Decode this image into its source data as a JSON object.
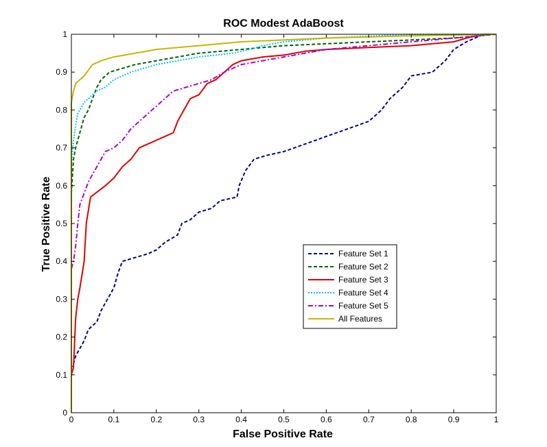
{
  "chart_data": {
    "type": "line",
    "title": "ROC Modest AdaBoost",
    "xlabel": "False Positive Rate",
    "ylabel": "True Positive Rate",
    "xlim": [
      0,
      1
    ],
    "ylim": [
      0,
      1
    ],
    "xticks": [
      "0",
      "0.1",
      "0.2",
      "0.3",
      "0.4",
      "0.5",
      "0.6",
      "0.7",
      "0.8",
      "0.9",
      "1"
    ],
    "yticks": [
      "0",
      "0.1",
      "0.2",
      "0.3",
      "0.4",
      "0.5",
      "0.6",
      "0.7",
      "0.8",
      "0.9",
      "1"
    ],
    "grid": false,
    "legend_position": "center-right",
    "series": [
      {
        "name": "Feature Set 1",
        "color": "#00008B",
        "style": "dashed",
        "points": [
          [
            0,
            0
          ],
          [
            0,
            0.12
          ],
          [
            0.005,
            0.13
          ],
          [
            0.01,
            0.15
          ],
          [
            0.02,
            0.17
          ],
          [
            0.03,
            0.19
          ],
          [
            0.04,
            0.22
          ],
          [
            0.05,
            0.23
          ],
          [
            0.06,
            0.24
          ],
          [
            0.07,
            0.27
          ],
          [
            0.08,
            0.29
          ],
          [
            0.09,
            0.31
          ],
          [
            0.1,
            0.33
          ],
          [
            0.11,
            0.37
          ],
          [
            0.12,
            0.4
          ],
          [
            0.15,
            0.41
          ],
          [
            0.18,
            0.42
          ],
          [
            0.2,
            0.43
          ],
          [
            0.22,
            0.45
          ],
          [
            0.25,
            0.47
          ],
          [
            0.26,
            0.5
          ],
          [
            0.28,
            0.51
          ],
          [
            0.3,
            0.53
          ],
          [
            0.33,
            0.54
          ],
          [
            0.35,
            0.56
          ],
          [
            0.39,
            0.57
          ],
          [
            0.395,
            0.6
          ],
          [
            0.41,
            0.64
          ],
          [
            0.43,
            0.67
          ],
          [
            0.46,
            0.68
          ],
          [
            0.5,
            0.69
          ],
          [
            0.55,
            0.71
          ],
          [
            0.6,
            0.73
          ],
          [
            0.65,
            0.75
          ],
          [
            0.7,
            0.77
          ],
          [
            0.73,
            0.8
          ],
          [
            0.75,
            0.83
          ],
          [
            0.78,
            0.86
          ],
          [
            0.8,
            0.89
          ],
          [
            0.85,
            0.9
          ],
          [
            0.88,
            0.93
          ],
          [
            0.9,
            0.96
          ],
          [
            0.93,
            0.98
          ],
          [
            0.97,
            1
          ],
          [
            1,
            1
          ]
        ]
      },
      {
        "name": "Feature Set 2",
        "color": "#006400",
        "style": "dashed",
        "points": [
          [
            0,
            0
          ],
          [
            0,
            0.58
          ],
          [
            0.005,
            0.67
          ],
          [
            0.01,
            0.7
          ],
          [
            0.02,
            0.74
          ],
          [
            0.03,
            0.78
          ],
          [
            0.04,
            0.8
          ],
          [
            0.05,
            0.83
          ],
          [
            0.06,
            0.86
          ],
          [
            0.07,
            0.88
          ],
          [
            0.09,
            0.9
          ],
          [
            0.12,
            0.91
          ],
          [
            0.15,
            0.92
          ],
          [
            0.2,
            0.93
          ],
          [
            0.25,
            0.94
          ],
          [
            0.3,
            0.95
          ],
          [
            0.4,
            0.96
          ],
          [
            0.5,
            0.97
          ],
          [
            0.6,
            0.975
          ],
          [
            0.7,
            0.98
          ],
          [
            0.8,
            0.985
          ],
          [
            0.9,
            0.99
          ],
          [
            0.95,
            0.995
          ],
          [
            1,
            1
          ]
        ]
      },
      {
        "name": "Feature Set 3",
        "color": "#DD0000",
        "style": "solid",
        "points": [
          [
            0,
            0
          ],
          [
            0,
            0.1
          ],
          [
            0.005,
            0.12
          ],
          [
            0.01,
            0.25
          ],
          [
            0.015,
            0.3
          ],
          [
            0.02,
            0.33
          ],
          [
            0.03,
            0.4
          ],
          [
            0.035,
            0.5
          ],
          [
            0.045,
            0.57
          ],
          [
            0.08,
            0.6
          ],
          [
            0.09,
            0.61
          ],
          [
            0.1,
            0.62
          ],
          [
            0.12,
            0.65
          ],
          [
            0.14,
            0.67
          ],
          [
            0.16,
            0.7
          ],
          [
            0.18,
            0.71
          ],
          [
            0.2,
            0.72
          ],
          [
            0.24,
            0.74
          ],
          [
            0.25,
            0.77
          ],
          [
            0.26,
            0.79
          ],
          [
            0.27,
            0.81
          ],
          [
            0.28,
            0.83
          ],
          [
            0.3,
            0.84
          ],
          [
            0.32,
            0.87
          ],
          [
            0.34,
            0.88
          ],
          [
            0.36,
            0.9
          ],
          [
            0.38,
            0.92
          ],
          [
            0.4,
            0.93
          ],
          [
            0.45,
            0.94
          ],
          [
            0.5,
            0.945
          ],
          [
            0.55,
            0.955
          ],
          [
            0.6,
            0.96
          ],
          [
            0.7,
            0.965
          ],
          [
            0.8,
            0.97
          ],
          [
            0.85,
            0.975
          ],
          [
            0.9,
            0.98
          ],
          [
            0.93,
            0.99
          ],
          [
            0.97,
            1
          ],
          [
            1,
            1
          ]
        ]
      },
      {
        "name": "Feature Set 4",
        "color": "#00BFFF",
        "style": "dotted",
        "points": [
          [
            0,
            0
          ],
          [
            0,
            0.66
          ],
          [
            0.005,
            0.72
          ],
          [
            0.01,
            0.76
          ],
          [
            0.015,
            0.79
          ],
          [
            0.02,
            0.8
          ],
          [
            0.03,
            0.82
          ],
          [
            0.05,
            0.84
          ],
          [
            0.06,
            0.85
          ],
          [
            0.08,
            0.86
          ],
          [
            0.09,
            0.87
          ],
          [
            0.1,
            0.88
          ],
          [
            0.12,
            0.89
          ],
          [
            0.14,
            0.9
          ],
          [
            0.17,
            0.91
          ],
          [
            0.2,
            0.92
          ],
          [
            0.25,
            0.93
          ],
          [
            0.3,
            0.94
          ],
          [
            0.38,
            0.95
          ],
          [
            0.42,
            0.96
          ],
          [
            0.45,
            0.97
          ],
          [
            0.5,
            0.98
          ],
          [
            0.6,
            0.99
          ],
          [
            0.7,
            0.995
          ],
          [
            0.8,
            1
          ],
          [
            1,
            1
          ]
        ]
      },
      {
        "name": "Feature Set 5",
        "color": "#AA00CC",
        "style": "dashdot",
        "points": [
          [
            0,
            0
          ],
          [
            0,
            0.38
          ],
          [
            0.005,
            0.4
          ],
          [
            0.01,
            0.44
          ],
          [
            0.015,
            0.5
          ],
          [
            0.02,
            0.55
          ],
          [
            0.03,
            0.58
          ],
          [
            0.04,
            0.61
          ],
          [
            0.05,
            0.63
          ],
          [
            0.06,
            0.65
          ],
          [
            0.07,
            0.67
          ],
          [
            0.08,
            0.69
          ],
          [
            0.1,
            0.7
          ],
          [
            0.12,
            0.72
          ],
          [
            0.14,
            0.75
          ],
          [
            0.16,
            0.77
          ],
          [
            0.18,
            0.79
          ],
          [
            0.2,
            0.81
          ],
          [
            0.22,
            0.83
          ],
          [
            0.24,
            0.85
          ],
          [
            0.27,
            0.86
          ],
          [
            0.3,
            0.87
          ],
          [
            0.33,
            0.88
          ],
          [
            0.36,
            0.9
          ],
          [
            0.4,
            0.92
          ],
          [
            0.45,
            0.93
          ],
          [
            0.5,
            0.94
          ],
          [
            0.55,
            0.95
          ],
          [
            0.6,
            0.96
          ],
          [
            0.65,
            0.965
          ],
          [
            0.7,
            0.97
          ],
          [
            0.8,
            0.98
          ],
          [
            0.9,
            0.99
          ],
          [
            0.95,
            0.995
          ],
          [
            1,
            1
          ]
        ]
      },
      {
        "name": "All Features",
        "color": "#C8B400",
        "style": "solid",
        "points": [
          [
            0,
            0
          ],
          [
            0,
            0.82
          ],
          [
            0.005,
            0.85
          ],
          [
            0.01,
            0.87
          ],
          [
            0.02,
            0.88
          ],
          [
            0.03,
            0.89
          ],
          [
            0.05,
            0.92
          ],
          [
            0.07,
            0.93
          ],
          [
            0.1,
            0.94
          ],
          [
            0.15,
            0.95
          ],
          [
            0.2,
            0.96
          ],
          [
            0.3,
            0.97
          ],
          [
            0.4,
            0.98
          ],
          [
            0.5,
            0.985
          ],
          [
            0.6,
            0.99
          ],
          [
            0.7,
            0.993
          ],
          [
            0.8,
            0.996
          ],
          [
            0.9,
            0.998
          ],
          [
            1,
            1
          ]
        ]
      }
    ]
  }
}
